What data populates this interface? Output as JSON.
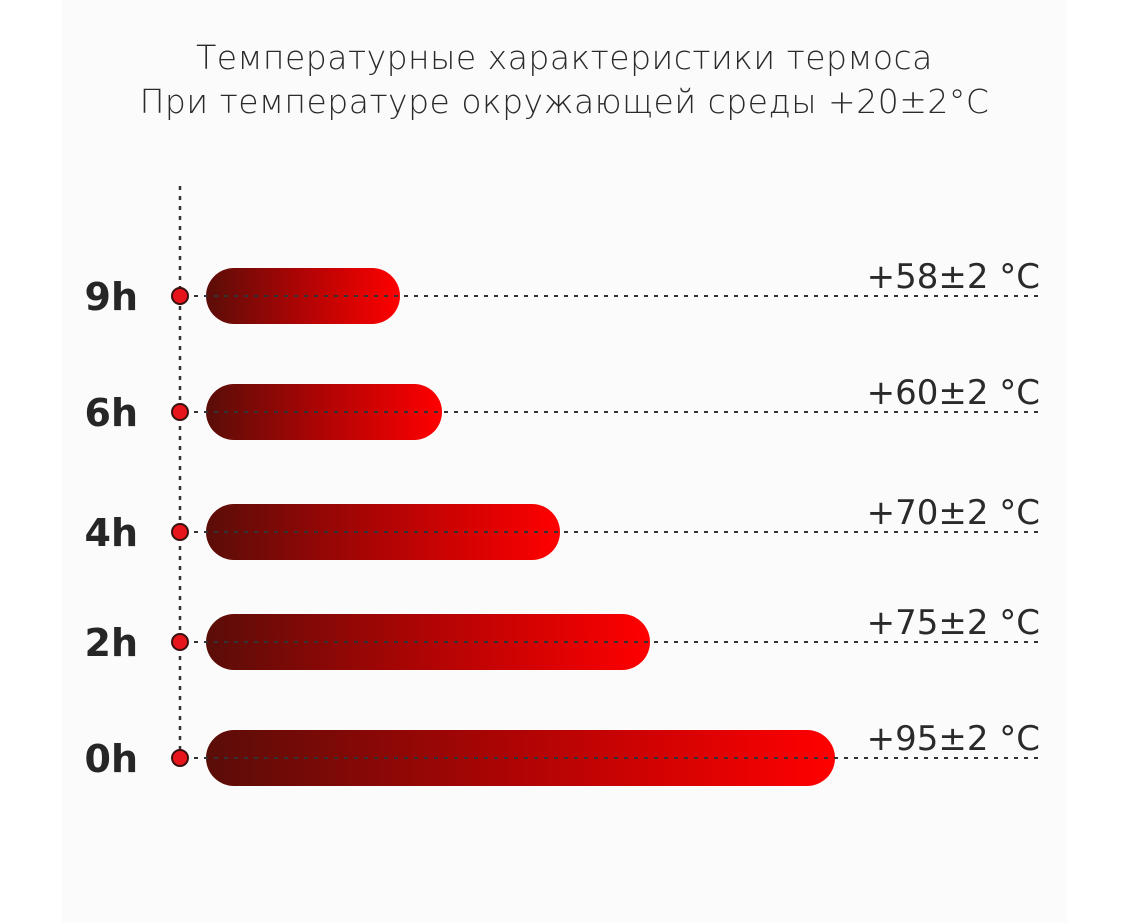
{
  "chart_data": {
    "type": "bar",
    "orientation": "horizontal",
    "title": "Температурные характеристики термоса",
    "subtitle": "При температуре окружающей среды +20±2°C",
    "categories": [
      "9h",
      "6h",
      "4h",
      "2h",
      "0h"
    ],
    "values": [
      58,
      60,
      70,
      75,
      95
    ],
    "value_labels": [
      "+58±2 °C",
      "+60±2 °C",
      "+70±2 °C",
      "+75±2 °C",
      "+95±2 °C"
    ],
    "unit": "°C",
    "grid": false,
    "colors": {
      "bar_start": "#5a0d08",
      "bar_end": "#ff0000",
      "marker": "#e8141b",
      "text": "#262626"
    }
  }
}
